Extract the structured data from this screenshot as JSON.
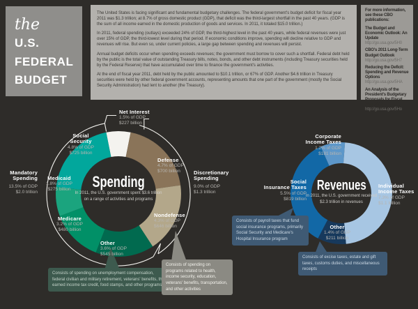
{
  "logo": {
    "script_word": "the",
    "lines": [
      "U.S.",
      "FEDERAL",
      "BUDGET"
    ]
  },
  "intro": {
    "paragraphs": [
      "The United States is facing significant and fundamental budgetary challenges. The federal government's budget deficit for fiscal year 2011 was $1.3 trillion; at 8.7% of gross domestic product (GDP), that deficit was the third-largest shortfall in the past 40 years. (GDP is the sum of all income earned in the domestic production of goods and services. In 2011, it totaled $15.0 trillion.)",
      "In 2011, federal spending (outlays) exceeded 24% of GDP, the third-highest level in the past 40 years, while federal revenues were just over 15% of GDP, the third-lowest level during that period. If economic conditions improve, spending will decline relative to GDP and revenues will rise. But even so, under current policies, a large gap between spending and revenues will persist.",
      "Annual budget deficits occur when spending exceeds revenues; the government must borrow to cover such a shortfall. Federal debt held by the public is the total value of outstanding Treasury bills, notes, bonds, and other debt instruments (including Treasury securities held by the Federal Reserve) that have accumulated over time to finance the government's activities.",
      "At the end of fiscal year 2011, debt held by the public amounted to $10.1 trillion, or 67% of GDP. Another $4.6 trillion in Treasury securities were held by other federal government accounts, representing amounts that one part of the government (mostly the Social Security Administration) had lent to another (the Treasury)."
    ]
  },
  "sidebar": {
    "heading": "For more information, see these CBO publications:",
    "publications": [
      {
        "title": "The Budget and Economic Outlook: An Update",
        "url": "http://go.usa.gov/5H0"
      },
      {
        "title": "CBO's 2011 Long-Term Budget Outlook",
        "url": "http://go.usa.gov/5H7"
      },
      {
        "title": "Reducing the Deficit: Spending and Revenue Options",
        "url": "http://go.usa.gov/5HA"
      },
      {
        "title": "An Analysis of the President's Budgetary Proposals for Fiscal Year 2012",
        "url": "http://go.usa.gov/5Ho"
      }
    ]
  },
  "chart_data": [
    {
      "type": "pie",
      "variant": "donut",
      "center_title": "Spending",
      "sub1": "In 2011, the U.S. government spent $3.6 trillion",
      "sub2": "on a range of activities and programs",
      "units": "percent of GDP",
      "start_angle": -11.3,
      "series": [
        {
          "name": "Net Interest",
          "name_l1": "Net Interest",
          "value": 1.5,
          "pct_label": "1.5% of GDP",
          "amount": "$227 billion",
          "color": "#f4f3ef"
        },
        {
          "name": "Defense",
          "name_l1": "Defense",
          "value": 4.7,
          "pct_label": "4.7% of GDP",
          "amount": "$700 billion",
          "color": "#8a7459"
        },
        {
          "name": "Nondefense",
          "name_l1": "Nondefense",
          "value": 4.3,
          "pct_label": "4.3% of GDP",
          "amount": "$646 billion",
          "color": "#b3a78a"
        },
        {
          "name": "Other",
          "name_l1": "Other",
          "value": 3.6,
          "pct_label": "3.6% of GDP",
          "amount": "$545 billion",
          "color": "#016a4f"
        },
        {
          "name": "Medicare",
          "name_l1": "Medicare",
          "value": 3.2,
          "pct_label": "3.2% of GDP",
          "amount": "$480 billion",
          "color": "#019067"
        },
        {
          "name": "Medicaid",
          "name_l1": "Medicaid",
          "value": 1.8,
          "pct_label": "1.8% of GDP",
          "amount": "$275 billion",
          "color": "#1ba47e"
        },
        {
          "name": "Social Security",
          "name_l1": "Social",
          "name_l2": "Security",
          "value": 4.8,
          "pct_label": "4.8% of GDP",
          "amount": "$725 billion",
          "color": "#02a79c"
        }
      ],
      "groups": [
        {
          "name": "Mandatory Spending",
          "name_l1": "Mandatory",
          "name_l2": "Spending",
          "pct_label": "13.5% of GDP",
          "amount": "$2.0 trillion"
        },
        {
          "name": "Discretionary Spending",
          "name_l1": "Discretionary",
          "name_l2": "Spending",
          "pct_label": "9.0% of GDP",
          "amount": "$1.3 trillion"
        }
      ],
      "callouts": [
        {
          "target": "Other",
          "text": "Consists of spending on unemployment compensation, federal civilian and military retirement, veterans' benefits, the earned income tax credit, food stamps, and other programs"
        },
        {
          "target": "Nondefense",
          "text": "Consists of spending on programs related to health, income security, education, veterans' benefits, transportation, and other activities"
        }
      ]
    },
    {
      "type": "pie",
      "variant": "donut",
      "center_title": "Revenues",
      "sub1": "In 2011, the U.S. government received",
      "sub2": "$2.3 trillion in revenues",
      "units": "percent of GDP",
      "start_angle": -24,
      "series": [
        {
          "name": "Corporate Income Taxes",
          "name_l1": "Corporate",
          "name_l2": "Income Taxes",
          "value": 1.2,
          "pct_label": "1.2% of GDP",
          "amount": "$181 billion",
          "color": "#5d97c9"
        },
        {
          "name": "Individual Income Taxes",
          "name_l1": "Individual",
          "name_l2": "Income Taxes",
          "value": 7.3,
          "pct_label": "7.3% of GDP",
          "amount": "$1.1 trillion",
          "color": "#a7c6e3"
        },
        {
          "name": "Other",
          "name_l1": "Other",
          "value": 1.4,
          "pct_label": "1.4% of GDP",
          "amount": "$211 billion",
          "color": "#17395c"
        },
        {
          "name": "Social Insurance Taxes",
          "name_l1": "Social",
          "name_l2": "Insurance Taxes",
          "value": 5.5,
          "pct_label": "5.5% of GDP",
          "amount": "$819 billion",
          "color": "#1268a6"
        }
      ],
      "callouts": [
        {
          "target": "Social Insurance Taxes",
          "text": "Consists of payroll taxes that fund social insurance programs, primarily Social Security and Medicare's Hospital Insurance program"
        },
        {
          "target": "Other",
          "text": "Consists of excise taxes, estate and gift taxes, customs duties, and miscellaneous receipts"
        }
      ]
    }
  ]
}
